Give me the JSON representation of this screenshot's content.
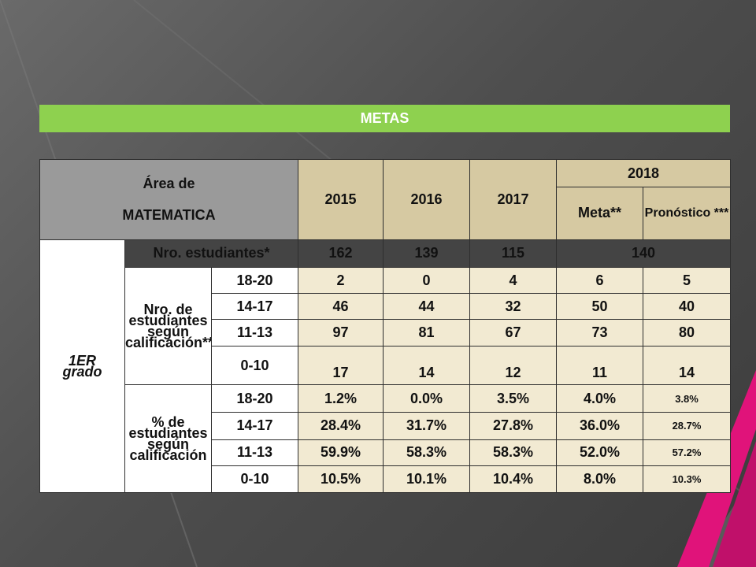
{
  "banner": "METAS",
  "table": {
    "area_title_line1": "Área de",
    "area_title_line2": "MATEMATICA",
    "years": [
      "2015",
      "2016",
      "2017"
    ],
    "year_2018": "2018",
    "meta_label": "Meta**",
    "pronostico_label": "Pronóstico ***",
    "grade_line1": "1ER",
    "grade_line2": "grado",
    "nro_label": "Nro. estudiantes*",
    "nro_values": [
      "162",
      "139",
      "115",
      "140"
    ],
    "group_count_label": "Nro. de estudiantes según calificación****",
    "group_pct_label": "% de estudiantes según calificación",
    "count_rows": [
      {
        "range": "18-20",
        "values": [
          "2",
          "0",
          "4",
          "6",
          "5"
        ]
      },
      {
        "range": "14-17",
        "values": [
          "46",
          "44",
          "32",
          "50",
          "40"
        ]
      },
      {
        "range": "11-13",
        "values": [
          "97",
          "81",
          "67",
          "73",
          "80"
        ]
      },
      {
        "range": "0-10",
        "values": [
          "17",
          "14",
          "12",
          "11",
          "14"
        ]
      }
    ],
    "pct_rows": [
      {
        "range": "18-20",
        "values": [
          "1.2%",
          "0.0%",
          "3.5%",
          "4.0%",
          "3.8%"
        ]
      },
      {
        "range": "14-17",
        "values": [
          "28.4%",
          "31.7%",
          "27.8%",
          "36.0%",
          "28.7%"
        ]
      },
      {
        "range": "11-13",
        "values": [
          "59.9%",
          "58.3%",
          "58.3%",
          "52.0%",
          "57.2%"
        ]
      },
      {
        "range": "0-10",
        "values": [
          "10.5%",
          "10.1%",
          "10.4%",
          "8.0%",
          "10.3%"
        ]
      }
    ]
  },
  "colors": {
    "banner": "#8ed14f",
    "header_gray": "#9a9a9a",
    "year_bg": "#d6c9a2",
    "year_text": "#c4000e",
    "cell_bg": "#f2ead2",
    "dark_row": "#444444",
    "accent_magenta": "#e0137a"
  }
}
